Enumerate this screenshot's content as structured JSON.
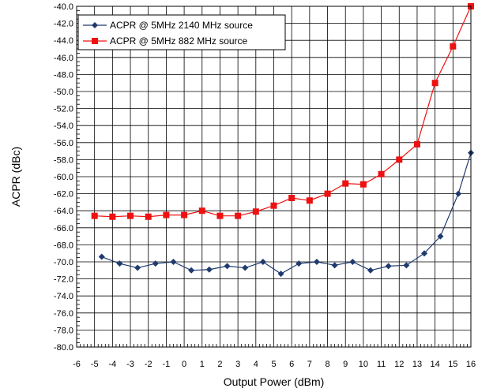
{
  "chart_data": {
    "type": "line",
    "title": "",
    "xlabel": "Output Power (dBm)",
    "ylabel": "ACPR (dBc)",
    "xlim": [
      -6,
      16
    ],
    "ylim": [
      -80,
      -40
    ],
    "x_ticks": [
      "-6",
      "-5",
      "-4",
      "-3",
      "-2",
      "-1",
      "0",
      "1",
      "2",
      "3",
      "4",
      "5",
      "6",
      "7",
      "8",
      "9",
      "10",
      "11",
      "12",
      "13",
      "14",
      "15",
      "16"
    ],
    "y_ticks": [
      "-40.0",
      "-42.0",
      "-44.0",
      "-46.0",
      "-48.0",
      "-50.0",
      "-52.0",
      "-54.0",
      "-56.0",
      "-58.0",
      "-60.0",
      "-62.0",
      "-64.0",
      "-66.0",
      "-68.0",
      "-70.0",
      "-72.0",
      "-74.0",
      "-76.0",
      "-78.0",
      "-80.0"
    ],
    "grid": true,
    "legend_position": "top-left",
    "series": [
      {
        "name": "ACPR @ 5MHz 2140 MHz source",
        "color": "#1f3a6e",
        "marker": "diamond",
        "points": [
          [
            -4.6,
            -69.4
          ],
          [
            -3.6,
            -70.2
          ],
          [
            -2.6,
            -70.7
          ],
          [
            -1.6,
            -70.2
          ],
          [
            -0.6,
            -70.0
          ],
          [
            0.4,
            -71.0
          ],
          [
            1.4,
            -70.9
          ],
          [
            2.4,
            -70.5
          ],
          [
            3.4,
            -70.7
          ],
          [
            4.4,
            -70.0
          ],
          [
            5.4,
            -71.4
          ],
          [
            6.4,
            -70.2
          ],
          [
            7.4,
            -70.0
          ],
          [
            8.4,
            -70.4
          ],
          [
            9.4,
            -70.0
          ],
          [
            10.4,
            -71.0
          ],
          [
            11.4,
            -70.5
          ],
          [
            12.4,
            -70.4
          ],
          [
            13.4,
            -69.0
          ],
          [
            14.3,
            -67.0
          ],
          [
            15.3,
            -62.0
          ],
          [
            16.0,
            -57.2
          ]
        ]
      },
      {
        "name": "ACPR @ 5MHz 882 MHz source",
        "color": "#ee1111",
        "marker": "square",
        "points": [
          [
            -5.0,
            -64.6
          ],
          [
            -4.0,
            -64.7
          ],
          [
            -3.0,
            -64.6
          ],
          [
            -2.0,
            -64.7
          ],
          [
            -1.0,
            -64.5
          ],
          [
            0.0,
            -64.5
          ],
          [
            1.0,
            -64.0
          ],
          [
            2.0,
            -64.6
          ],
          [
            3.0,
            -64.6
          ],
          [
            4.0,
            -64.1
          ],
          [
            5.0,
            -63.4
          ],
          [
            6.0,
            -62.5
          ],
          [
            7.0,
            -62.8
          ],
          [
            8.0,
            -62.0
          ],
          [
            9.0,
            -60.8
          ],
          [
            10.0,
            -60.9
          ],
          [
            11.0,
            -59.7
          ],
          [
            12.0,
            -58.0
          ],
          [
            13.0,
            -56.2
          ],
          [
            14.0,
            -49.0
          ],
          [
            15.0,
            -44.7
          ],
          [
            16.0,
            -40.0
          ]
        ]
      }
    ]
  }
}
